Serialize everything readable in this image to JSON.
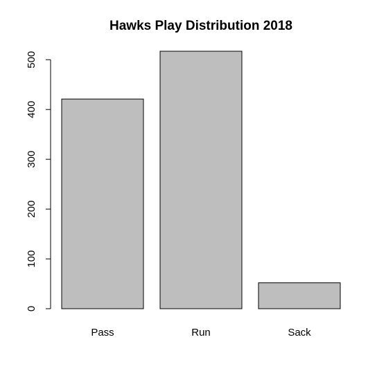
{
  "chart_data": {
    "type": "bar",
    "title": "Hawks Play Distribution 2018",
    "xlabel": "",
    "ylabel": "",
    "categories": [
      "Pass",
      "Run",
      "Sack"
    ],
    "values": [
      421,
      517,
      52
    ],
    "ylim": [
      0,
      517
    ],
    "yticks": [
      0,
      100,
      200,
      300,
      400,
      500
    ],
    "grid": false,
    "legend": "none",
    "colors": {
      "bar_fill": "#bebebe",
      "bar_stroke": "#000000",
      "axis": "#000000",
      "background": "#ffffff"
    }
  }
}
